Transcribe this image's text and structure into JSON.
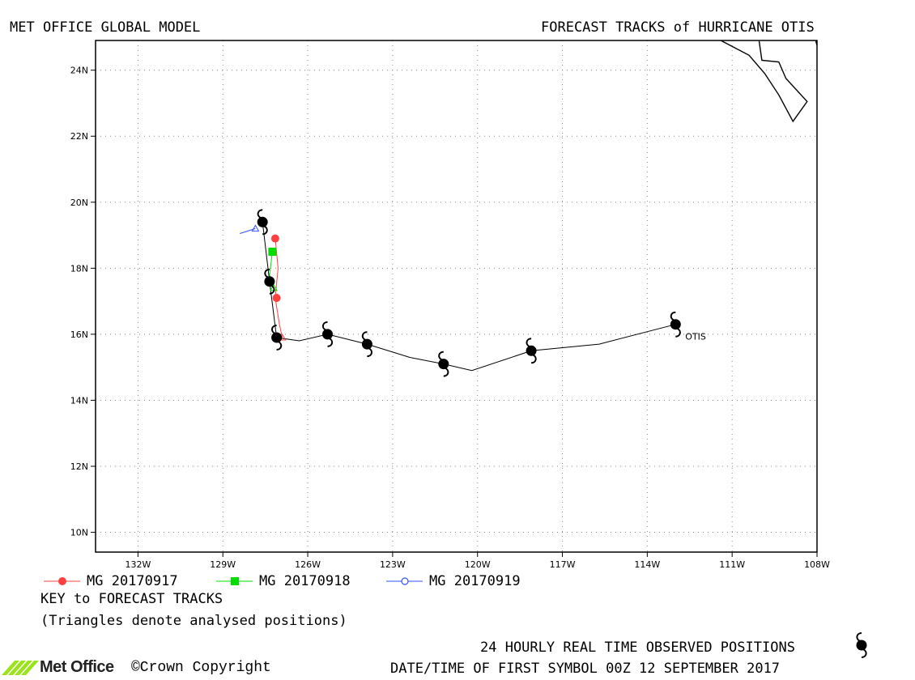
{
  "header": {
    "left_title": "MET OFFICE GLOBAL MODEL",
    "right_title": "FORECAST TRACKS of HURRICANE OTIS"
  },
  "map": {
    "lon_range": [
      -133.5,
      -108
    ],
    "lat_range": [
      9.4,
      24.9
    ],
    "lon_ticks": [
      {
        "value": -132,
        "label": "132W"
      },
      {
        "value": -129,
        "label": "129W"
      },
      {
        "value": -126,
        "label": "126W"
      },
      {
        "value": -123,
        "label": "123W"
      },
      {
        "value": -120,
        "label": "120W"
      },
      {
        "value": -117,
        "label": "117W"
      },
      {
        "value": -114,
        "label": "114W"
      },
      {
        "value": -111,
        "label": "111W"
      },
      {
        "value": -108,
        "label": "108W"
      }
    ],
    "lat_ticks": [
      {
        "value": 10,
        "label": "10N"
      },
      {
        "value": 12,
        "label": "12N"
      },
      {
        "value": 14,
        "label": "14N"
      },
      {
        "value": 16,
        "label": "16N"
      },
      {
        "value": 18,
        "label": "18N"
      },
      {
        "value": 20,
        "label": "20N"
      },
      {
        "value": 22,
        "label": "22N"
      },
      {
        "value": 24,
        "label": "24N"
      }
    ],
    "gridlines": true,
    "coastline": [
      [
        -111.4,
        24.9
      ],
      [
        -110.4,
        24.45
      ],
      [
        -109.85,
        23.9
      ],
      [
        -109.35,
        23.25
      ],
      [
        -108.85,
        22.45
      ],
      [
        -108.35,
        23.05
      ],
      [
        -109.1,
        23.75
      ],
      [
        -109.35,
        24.25
      ],
      [
        -109.95,
        24.3
      ],
      [
        -110.05,
        24.9
      ]
    ],
    "coastline_2": [
      [
        -108.05,
        24.9
      ],
      [
        -108.0,
        24.75
      ]
    ],
    "storm_name": "OTIS",
    "observed_track": [
      [
        -113.0,
        16.3
      ],
      [
        -115.7,
        15.7
      ],
      [
        -118.1,
        15.5
      ],
      [
        -120.2,
        14.9
      ],
      [
        -121.2,
        15.1
      ],
      [
        -122.4,
        15.3
      ],
      [
        -123.9,
        15.7
      ],
      [
        -125.3,
        16.0
      ],
      [
        -126.3,
        15.8
      ],
      [
        -127.1,
        15.9
      ],
      [
        -127.35,
        17.6
      ],
      [
        -127.6,
        19.4
      ]
    ],
    "observed_symbols": [
      [
        -113.0,
        16.3
      ],
      [
        -118.1,
        15.5
      ],
      [
        -121.2,
        15.1
      ],
      [
        -123.9,
        15.7
      ],
      [
        -125.3,
        16.0
      ],
      [
        -127.1,
        15.9
      ],
      [
        -127.35,
        17.6
      ],
      [
        -127.6,
        19.4
      ]
    ],
    "forecast_tracks": [
      {
        "name": "MG 20170917",
        "color": "#ff4040",
        "marker": "filled-circle",
        "points": [
          [
            -127.05,
            15.9
          ],
          [
            -127.1,
            17.1
          ],
          [
            -127.15,
            18.9
          ]
        ],
        "line": [
          [
            -126.9,
            15.9
          ],
          [
            -127.0,
            16.3
          ],
          [
            -127.15,
            17.1
          ],
          [
            -127.05,
            18.0
          ],
          [
            -127.15,
            18.9
          ]
        ],
        "analysed": [
          [
            -126.9,
            15.9
          ]
        ]
      },
      {
        "name": "MG 20170918",
        "color": "#00dd00",
        "marker": "filled-square",
        "points": [
          [
            -127.25,
            18.5
          ]
        ],
        "line": [
          [
            -127.2,
            17.4
          ],
          [
            -127.35,
            17.8
          ],
          [
            -127.25,
            18.5
          ]
        ],
        "analysed": [
          [
            -127.2,
            17.4
          ]
        ]
      },
      {
        "name": "MG 20170919",
        "color": "#3050ff",
        "marker": "open-circle",
        "points": [],
        "line": [
          [
            -127.85,
            19.2
          ],
          [
            -128.4,
            19.05
          ]
        ],
        "analysed": [
          [
            -127.85,
            19.2
          ]
        ]
      }
    ]
  },
  "legend": {
    "entries": [
      {
        "label": "MG 20170917",
        "color": "#ff4040",
        "marker": "filled-circle"
      },
      {
        "label": "MG 20170918",
        "color": "#00dd00",
        "marker": "filled-square"
      },
      {
        "label": "MG 20170919",
        "color": "#3050ff",
        "marker": "open-circle"
      }
    ],
    "key_title": "KEY to FORECAST TRACKS",
    "key_note": "(Triangles denote analysed positions)"
  },
  "footer": {
    "observed_label": "24 HOURLY REAL TIME OBSERVED POSITIONS",
    "first_symbol_label": "DATE/TIME OF FIRST SYMBOL 00Z 12 SEPTEMBER 2017",
    "brand": "Met Office",
    "copyright": "©Crown Copyright"
  }
}
